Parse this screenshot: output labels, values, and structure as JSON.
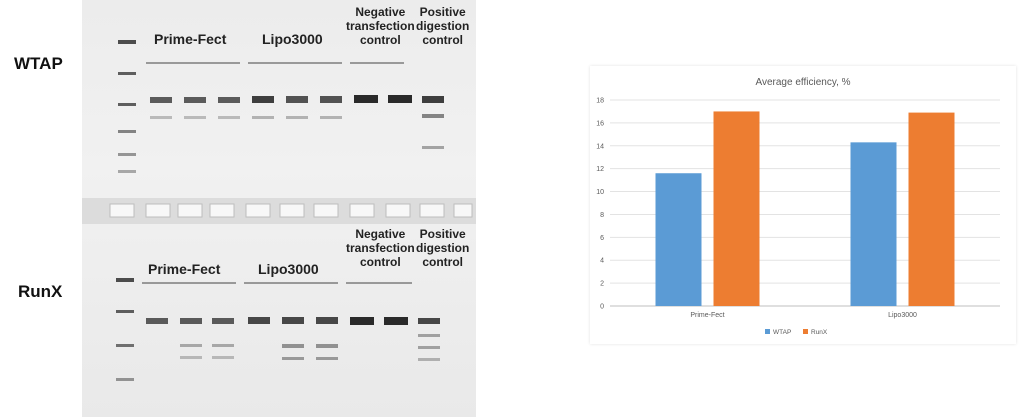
{
  "gel": {
    "rows": [
      {
        "label": "WTAP",
        "groups": [
          "Prime-Fect",
          "Lipo3000"
        ],
        "negative_control": [
          "Negative",
          "transfection",
          "control"
        ],
        "positive_control": [
          "Positive",
          "digestion",
          "control"
        ]
      },
      {
        "label": "RunX",
        "groups": [
          "Prime-Fect",
          "Lipo3000"
        ],
        "negative_control": [
          "Negative",
          "transfection",
          "control"
        ],
        "positive_control": [
          "Positive",
          "digestion",
          "control"
        ]
      }
    ]
  },
  "chart_data": {
    "type": "bar",
    "title": "Average efficiency, %",
    "categories": [
      "Prime-Fect",
      "Lipo3000"
    ],
    "series": [
      {
        "name": "WTAP",
        "values": [
          11.6,
          14.3
        ],
        "color": "#5B9BD5"
      },
      {
        "name": "RunX",
        "values": [
          17.0,
          16.9
        ],
        "color": "#ED7D31"
      }
    ],
    "ylim": [
      0,
      18
    ],
    "yticks": [
      "0",
      "2",
      "4",
      "6",
      "8",
      "10",
      "12",
      "14",
      "16",
      "18"
    ],
    "grid": true,
    "legend": "bottom"
  }
}
